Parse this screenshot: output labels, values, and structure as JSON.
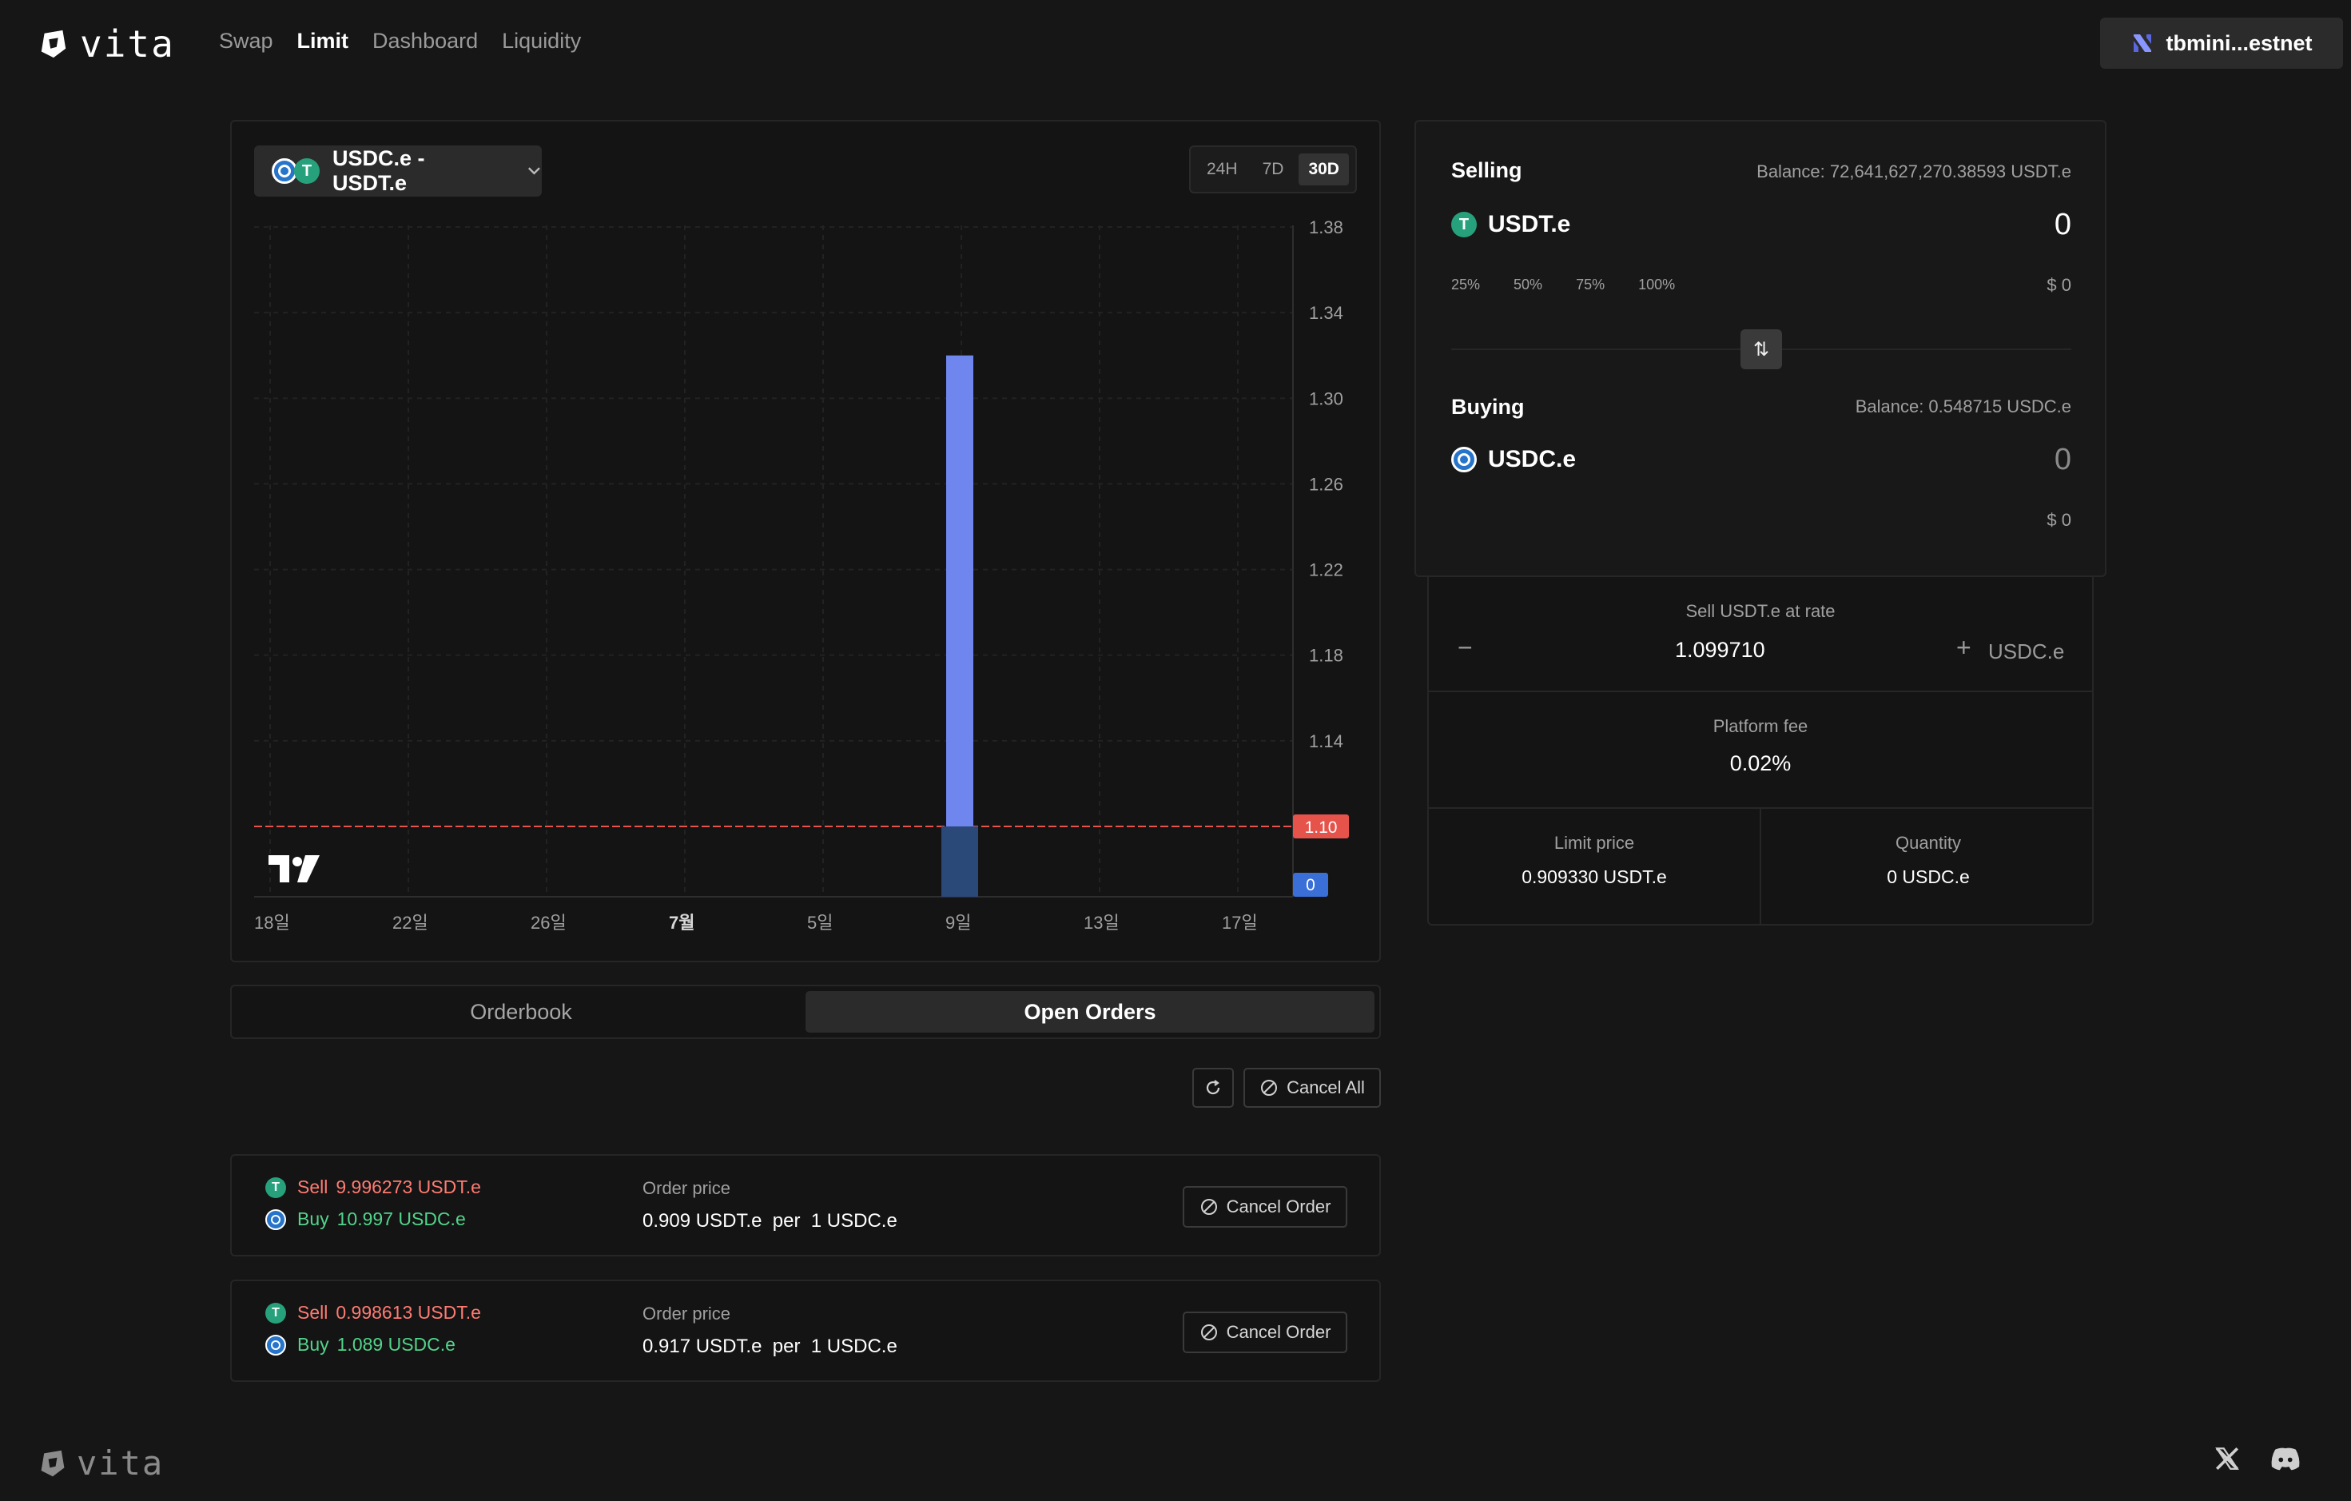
{
  "header": {
    "brand": "vita",
    "nav": [
      {
        "label": "Swap",
        "active": false
      },
      {
        "label": "Limit",
        "active": true
      },
      {
        "label": "Dashboard",
        "active": false
      },
      {
        "label": "Liquidity",
        "active": false
      }
    ],
    "wallet_label": "tbmini...estnet"
  },
  "chart_panel": {
    "pair_label": "USDC.e - USDT.e",
    "ranges": [
      {
        "label": "24H",
        "active": false
      },
      {
        "label": "7D",
        "active": false
      },
      {
        "label": "30D",
        "active": true
      }
    ]
  },
  "chart_data": {
    "type": "bar",
    "x_tick_labels": [
      "18일",
      "22일",
      "26일",
      "7월",
      "5일",
      "9일",
      "13일",
      "17일"
    ],
    "y_tick_labels": [
      "1.38",
      "1.34",
      "1.30",
      "1.26",
      "1.22",
      "1.18",
      "1.14",
      "1.10"
    ],
    "ylim": [
      1.1,
      1.38
    ],
    "price_bar": {
      "x": "8일",
      "value": 1.32
    },
    "current_price_label": "1.10",
    "current_price": 1.1,
    "volume_label": "0",
    "grid": true,
    "colors": {
      "price_bar": "#6f86ee",
      "volume_bar": "#2a4878",
      "price_line": "#e5534b",
      "price_tag": "#e5534b",
      "volume_tag": "#3b6fd8"
    }
  },
  "tabs": [
    {
      "label": "Orderbook",
      "active": false
    },
    {
      "label": "Open Orders",
      "active": true
    }
  ],
  "orders_toolbar": {
    "cancel_all_label": "Cancel All"
  },
  "orders": [
    {
      "sell_word": "Sell",
      "sell_amount": "9.996273 USDT.e",
      "buy_word": "Buy",
      "buy_amount": "10.997 USDC.e",
      "price_label": "Order price",
      "price_value": "0.909 USDT.e  per  1 USDC.e",
      "cancel_label": "Cancel Order"
    },
    {
      "sell_word": "Sell",
      "sell_amount": "0.998613 USDT.e",
      "buy_word": "Buy",
      "buy_amount": "1.089 USDC.e",
      "price_label": "Order price",
      "price_value": "0.917 USDT.e  per  1 USDC.e",
      "cancel_label": "Cancel Order"
    }
  ],
  "trade": {
    "selling": {
      "label": "Selling",
      "balance": "Balance: 72,641,627,270.38593 USDT.e",
      "token": "USDT.e",
      "amount": "0",
      "percents": [
        "25%",
        "50%",
        "75%",
        "100%"
      ],
      "usd": "$ 0"
    },
    "buying": {
      "label": "Buying",
      "balance": "Balance: 0.548715 USDC.e",
      "token": "USDC.e",
      "amount": "0",
      "usd": "$ 0"
    },
    "rate": {
      "label": "Sell USDT.e at rate",
      "minus": "−",
      "value": "1.099710",
      "plus": "+",
      "unit": "USDC.e"
    },
    "fee": {
      "label": "Platform fee",
      "value": "0.02%"
    },
    "limit_price": {
      "label": "Limit price",
      "value": "0.909330 USDT.e"
    },
    "quantity": {
      "label": "Quantity",
      "value": "0 USDC.e"
    }
  },
  "footer": {
    "brand": "vita"
  },
  "icons": {
    "usdt_glyph": "T",
    "swap_glyph": "⇅"
  }
}
